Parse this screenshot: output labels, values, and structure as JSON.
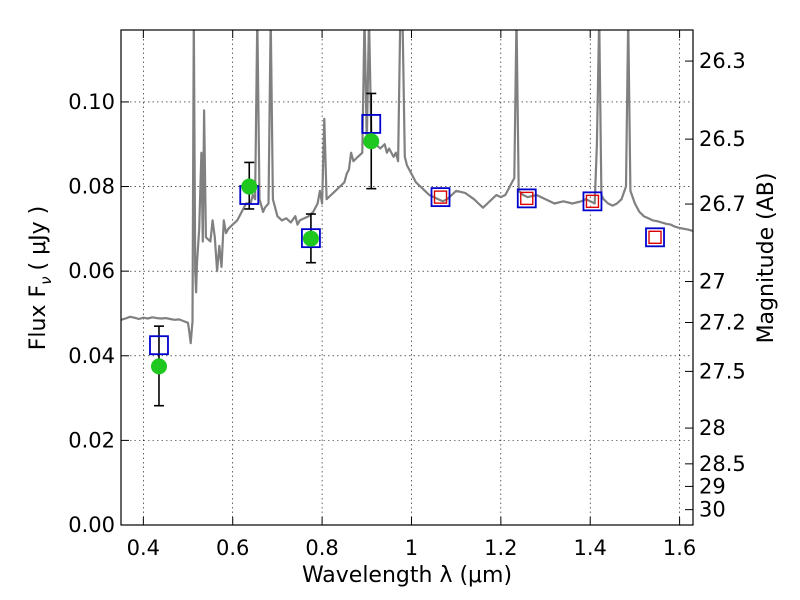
{
  "chart_data": {
    "type": "scatter",
    "title": "",
    "xlabel": "Wavelength  λ (μm)",
    "ylabel_left": "Flux  F",
    "ylabel_sub": "ν",
    "ylabel_unit": "( μJy )",
    "ylabel_right": "Magnitude (AB)",
    "xlim": [
      0.35,
      1.63
    ],
    "ylim": [
      0.0,
      0.117
    ],
    "grid": true,
    "x_ticks": [
      {
        "value": 0.4,
        "label": "0.4"
      },
      {
        "value": 0.6,
        "label": "0.6"
      },
      {
        "value": 0.8,
        "label": "0.8"
      },
      {
        "value": 1.0,
        "label": "1"
      },
      {
        "value": 1.2,
        "label": "1.2"
      },
      {
        "value": 1.4,
        "label": "1.4"
      },
      {
        "value": 1.6,
        "label": "1.6"
      }
    ],
    "y_ticks": [
      {
        "value": 0.0,
        "label": "0.00"
      },
      {
        "value": 0.02,
        "label": "0.02"
      },
      {
        "value": 0.04,
        "label": "0.04"
      },
      {
        "value": 0.06,
        "label": "0.06"
      },
      {
        "value": 0.08,
        "label": "0.08"
      },
      {
        "value": 0.1,
        "label": "0.10"
      }
    ],
    "right_ticks": [
      {
        "value": 26.3,
        "label": "26.3"
      },
      {
        "value": 26.5,
        "label": "26.5"
      },
      {
        "value": 26.7,
        "label": "26.7"
      },
      {
        "value": 27.0,
        "label": "27"
      },
      {
        "value": 27.2,
        "label": "27.2"
      },
      {
        "value": 27.5,
        "label": "27.5"
      },
      {
        "value": 28.0,
        "label": "28"
      },
      {
        "value": 28.5,
        "label": "28.5"
      },
      {
        "value": 29.0,
        "label": "29"
      },
      {
        "value": 30.0,
        "label": "30"
      }
    ],
    "series": [
      {
        "kind": "spectrum",
        "color": "#808080",
        "points": [
          [
            0.35,
            0.0485
          ],
          [
            0.36,
            0.0488
          ],
          [
            0.37,
            0.0492
          ],
          [
            0.38,
            0.049
          ],
          [
            0.39,
            0.0487
          ],
          [
            0.4,
            0.049
          ],
          [
            0.41,
            0.0488
          ],
          [
            0.42,
            0.0491
          ],
          [
            0.43,
            0.0489
          ],
          [
            0.44,
            0.0488
          ],
          [
            0.45,
            0.0489
          ],
          [
            0.46,
            0.0487
          ],
          [
            0.47,
            0.0485
          ],
          [
            0.48,
            0.0486
          ],
          [
            0.49,
            0.0482
          ],
          [
            0.5,
            0.0478
          ],
          [
            0.503,
            0.0455
          ],
          [
            0.506,
            0.043
          ],
          [
            0.509,
            0.047
          ],
          [
            0.51,
            0.048
          ],
          [
            0.513,
            0.12
          ],
          [
            0.516,
            0.06
          ],
          [
            0.518,
            0.055
          ],
          [
            0.52,
            0.062
          ],
          [
            0.525,
            0.07
          ],
          [
            0.53,
            0.088
          ],
          [
            0.533,
            0.067
          ],
          [
            0.536,
            0.098
          ],
          [
            0.54,
            0.068
          ],
          [
            0.55,
            0.067
          ],
          [
            0.555,
            0.072
          ],
          [
            0.56,
            0.068
          ],
          [
            0.565,
            0.06
          ],
          [
            0.57,
            0.066
          ],
          [
            0.575,
            0.061
          ],
          [
            0.58,
            0.072
          ],
          [
            0.585,
            0.069
          ],
          [
            0.59,
            0.07
          ],
          [
            0.6,
            0.071
          ],
          [
            0.61,
            0.072
          ],
          [
            0.615,
            0.073
          ],
          [
            0.62,
            0.074
          ],
          [
            0.63,
            0.076
          ],
          [
            0.64,
            0.076
          ],
          [
            0.645,
            0.078
          ],
          [
            0.65,
            0.077
          ],
          [
            0.655,
            0.12
          ],
          [
            0.66,
            0.077
          ],
          [
            0.668,
            0.074
          ],
          [
            0.672,
            0.075
          ],
          [
            0.68,
            0.076
          ],
          [
            0.685,
            0.12
          ],
          [
            0.69,
            0.077
          ],
          [
            0.7,
            0.073
          ],
          [
            0.71,
            0.072
          ],
          [
            0.72,
            0.0725
          ],
          [
            0.73,
            0.0715
          ],
          [
            0.74,
            0.073
          ],
          [
            0.745,
            0.071
          ],
          [
            0.75,
            0.072
          ],
          [
            0.76,
            0.0725
          ],
          [
            0.77,
            0.073
          ],
          [
            0.78,
            0.074
          ],
          [
            0.79,
            0.076
          ],
          [
            0.795,
            0.079
          ],
          [
            0.8,
            0.076
          ],
          [
            0.805,
            0.096
          ],
          [
            0.81,
            0.077
          ],
          [
            0.82,
            0.078
          ],
          [
            0.83,
            0.079
          ],
          [
            0.84,
            0.08
          ],
          [
            0.85,
            0.081
          ],
          [
            0.855,
            0.083
          ],
          [
            0.86,
            0.084
          ],
          [
            0.865,
            0.088
          ],
          [
            0.87,
            0.086
          ],
          [
            0.88,
            0.087
          ],
          [
            0.89,
            0.088
          ],
          [
            0.895,
            0.12
          ],
          [
            0.9,
            0.09
          ],
          [
            0.905,
            0.12
          ],
          [
            0.91,
            0.092
          ],
          [
            0.92,
            0.09
          ],
          [
            0.93,
            0.089
          ],
          [
            0.94,
            0.09
          ],
          [
            0.945,
            0.088
          ],
          [
            0.95,
            0.089
          ],
          [
            0.96,
            0.087
          ],
          [
            0.965,
            0.088
          ],
          [
            0.97,
            0.086
          ],
          [
            0.975,
            0.12
          ],
          [
            0.98,
            0.12
          ],
          [
            0.985,
            0.087
          ],
          [
            0.99,
            0.085
          ],
          [
            1.0,
            0.083
          ],
          [
            1.01,
            0.081
          ],
          [
            1.02,
            0.08
          ],
          [
            1.03,
            0.079
          ],
          [
            1.04,
            0.078
          ],
          [
            1.05,
            0.0775
          ],
          [
            1.06,
            0.077
          ],
          [
            1.07,
            0.0765
          ],
          [
            1.08,
            0.077
          ],
          [
            1.09,
            0.078
          ],
          [
            1.1,
            0.079
          ],
          [
            1.12,
            0.0785
          ],
          [
            1.14,
            0.077
          ],
          [
            1.15,
            0.076
          ],
          [
            1.16,
            0.075
          ],
          [
            1.17,
            0.076
          ],
          [
            1.18,
            0.077
          ],
          [
            1.19,
            0.078
          ],
          [
            1.2,
            0.0775
          ],
          [
            1.21,
            0.078
          ],
          [
            1.22,
            0.08
          ],
          [
            1.225,
            0.081
          ],
          [
            1.23,
            0.082
          ],
          [
            1.235,
            0.12
          ],
          [
            1.24,
            0.079
          ],
          [
            1.25,
            0.078
          ],
          [
            1.26,
            0.0775
          ],
          [
            1.28,
            0.078
          ],
          [
            1.3,
            0.077
          ],
          [
            1.32,
            0.076
          ],
          [
            1.34,
            0.0765
          ],
          [
            1.36,
            0.076
          ],
          [
            1.38,
            0.0765
          ],
          [
            1.39,
            0.077
          ],
          [
            1.4,
            0.0765
          ],
          [
            1.41,
            0.076
          ],
          [
            1.415,
            0.09
          ],
          [
            1.42,
            0.12
          ],
          [
            1.425,
            0.078
          ],
          [
            1.43,
            0.077
          ],
          [
            1.44,
            0.076
          ],
          [
            1.45,
            0.0755
          ],
          [
            1.46,
            0.076
          ],
          [
            1.47,
            0.077
          ],
          [
            1.48,
            0.08
          ],
          [
            1.485,
            0.12
          ],
          [
            1.49,
            0.079
          ],
          [
            1.5,
            0.076
          ],
          [
            1.51,
            0.074
          ],
          [
            1.52,
            0.073
          ],
          [
            1.53,
            0.0725
          ],
          [
            1.54,
            0.072
          ],
          [
            1.55,
            0.0718
          ],
          [
            1.56,
            0.0715
          ],
          [
            1.57,
            0.0712
          ],
          [
            1.58,
            0.071
          ],
          [
            1.59,
            0.0705
          ],
          [
            1.6,
            0.0702
          ],
          [
            1.61,
            0.07
          ],
          [
            1.62,
            0.0698
          ],
          [
            1.63,
            0.0695
          ]
        ]
      },
      {
        "kind": "observed",
        "marker": "circle",
        "color": "#1ec81e",
        "error_color": "#000000",
        "points": [
          {
            "x": 0.435,
            "y": 0.0375,
            "err_low": 0.0093,
            "err_high": 0.0095
          },
          {
            "x": 0.637,
            "y": 0.08,
            "err_low": 0.0053,
            "err_high": 0.0057
          },
          {
            "x": 0.775,
            "y": 0.0677,
            "err_low": 0.0057,
            "err_high": 0.0058
          },
          {
            "x": 0.91,
            "y": 0.0907,
            "err_low": 0.0112,
            "err_high": 0.0113
          }
        ]
      },
      {
        "kind": "model_synthetic",
        "marker": "square",
        "color": "#0000cc",
        "points": [
          {
            "x": 0.435,
            "y": 0.0425
          },
          {
            "x": 0.637,
            "y": 0.078
          },
          {
            "x": 0.775,
            "y": 0.0678
          },
          {
            "x": 0.91,
            "y": 0.0948
          },
          {
            "x": 1.065,
            "y": 0.0775
          },
          {
            "x": 1.258,
            "y": 0.0772
          },
          {
            "x": 1.405,
            "y": 0.0765
          },
          {
            "x": 1.545,
            "y": 0.068
          }
        ]
      },
      {
        "kind": "upper_limits",
        "marker": "square",
        "color": "#dd0000",
        "points": [
          {
            "x": 1.065,
            "y": 0.0775
          },
          {
            "x": 1.258,
            "y": 0.0772
          },
          {
            "x": 1.405,
            "y": 0.0765
          },
          {
            "x": 1.545,
            "y": 0.068
          }
        ]
      }
    ]
  }
}
